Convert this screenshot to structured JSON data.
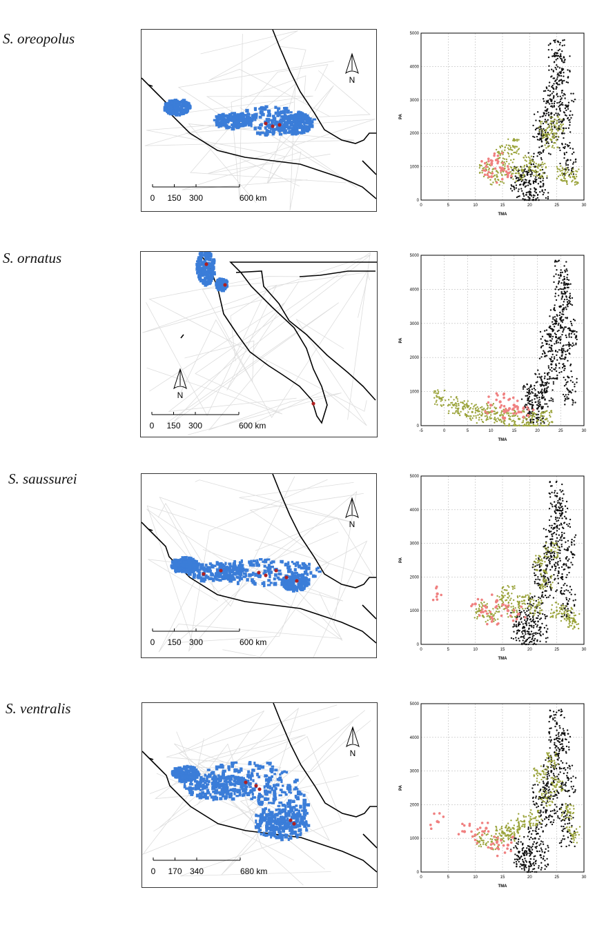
{
  "panels": [
    {
      "species": "S. oreopolus",
      "map": {
        "north_label": "N",
        "scalebar": {
          "ticks": [
            "0",
            "150",
            "300",
            "600 km"
          ]
        },
        "region": "central-mexico"
      },
      "chart_data": {
        "type": "scatter",
        "xlabel": "TMA",
        "ylabel": "PA",
        "xlim": [
          0,
          30
        ],
        "ylim": [
          0,
          5000
        ],
        "xticks": [
          "0",
          "5",
          "10",
          "15",
          "20",
          "25",
          "30"
        ],
        "yticks": [
          "0",
          "1000",
          "2000",
          "3000",
          "4000",
          "5000"
        ],
        "grid": true,
        "series": [
          {
            "color": "#111111",
            "points": [
              [
                20,
                250
              ],
              [
                22,
                400
              ],
              [
                24,
                3000
              ],
              [
                25,
                4400
              ],
              [
                26,
                2000
              ],
              [
                27,
                1200
              ],
              [
                25,
                3500
              ],
              [
                23,
                1800
              ],
              [
                18,
                600
              ],
              [
                21,
                1000
              ],
              [
                26,
                3900
              ],
              [
                24,
                2600
              ],
              [
                19,
                500
              ],
              [
                22,
                2200
              ],
              [
                27,
                2800
              ]
            ]
          },
          {
            "color": "#9aa33a",
            "points": [
              [
                12,
                900
              ],
              [
                14,
                700
              ],
              [
                16,
                1000
              ],
              [
                18,
                800
              ],
              [
                20,
                1100
              ],
              [
                22,
                900
              ],
              [
                24,
                1800
              ],
              [
                26,
                800
              ],
              [
                28,
                700
              ],
              [
                15,
                1400
              ],
              [
                17,
                1600
              ],
              [
                23,
                2100
              ],
              [
                25,
                2300
              ]
            ]
          },
          {
            "color": "#f08080",
            "points": [
              [
                12,
                1000
              ],
              [
                13,
                1100
              ],
              [
                14,
                1200
              ],
              [
                15,
                950
              ],
              [
                16,
                800
              ],
              [
                13,
                700
              ]
            ]
          }
        ]
      }
    },
    {
      "species": "S. ornatus",
      "map": {
        "north_label": "N",
        "scalebar": {
          "ticks": [
            "0",
            "150",
            "300",
            "600 km"
          ]
        },
        "region": "baja-california"
      },
      "chart_data": {
        "type": "scatter",
        "xlabel": "TMA",
        "ylabel": "PA",
        "xlim": [
          -5,
          30
        ],
        "ylim": [
          0,
          5000
        ],
        "xticks": [
          "-5",
          "0",
          "5",
          "10",
          "15",
          "20",
          "25",
          "30"
        ],
        "yticks": [
          "0",
          "1000",
          "2000",
          "3000",
          "4000",
          "5000"
        ],
        "grid": true,
        "series": [
          {
            "color": "#111111",
            "points": [
              [
                20,
                500
              ],
              [
                22,
                1000
              ],
              [
                24,
                3000
              ],
              [
                25,
                4400
              ],
              [
                26,
                2000
              ],
              [
                27,
                1000
              ],
              [
                25,
                3500
              ],
              [
                23,
                1800
              ],
              [
                18,
                800
              ],
              [
                21,
                1200
              ],
              [
                26,
                3900
              ],
              [
                24,
                2600
              ],
              [
                19,
                600
              ],
              [
                22,
                2400
              ],
              [
                27,
                2800
              ]
            ]
          },
          {
            "color": "#9aa33a",
            "points": [
              [
                -1,
                800
              ],
              [
                2,
                600
              ],
              [
                4,
                500
              ],
              [
                6,
                400
              ],
              [
                8,
                300
              ],
              [
                10,
                400
              ],
              [
                12,
                300
              ],
              [
                14,
                200
              ],
              [
                16,
                200
              ],
              [
                18,
                100
              ],
              [
                20,
                150
              ],
              [
                22,
                200
              ]
            ]
          },
          {
            "color": "#f08080",
            "points": [
              [
                10,
                600
              ],
              [
                12,
                700
              ],
              [
                14,
                500
              ],
              [
                16,
                400
              ],
              [
                18,
                300
              ],
              [
                15,
                600
              ],
              [
                13,
                400
              ]
            ]
          }
        ]
      }
    },
    {
      "species": "S. saussurei",
      "map": {
        "north_label": "N",
        "scalebar": {
          "ticks": [
            "0",
            "150",
            "300",
            "600 km"
          ]
        },
        "region": "central-mexico"
      },
      "chart_data": {
        "type": "scatter",
        "xlabel": "TMA",
        "ylabel": "PA",
        "xlim": [
          0,
          30
        ],
        "ylim": [
          0,
          5000
        ],
        "xticks": [
          "0",
          "5",
          "10",
          "15",
          "20",
          "25",
          "30"
        ],
        "yticks": [
          "0",
          "1000",
          "2000",
          "3000",
          "4000",
          "5000"
        ],
        "grid": true,
        "series": [
          {
            "color": "#111111",
            "points": [
              [
                20,
                300
              ],
              [
                22,
                500
              ],
              [
                24,
                3000
              ],
              [
                25,
                4400
              ],
              [
                26,
                2000
              ],
              [
                27,
                1200
              ],
              [
                25,
                3500
              ],
              [
                23,
                1800
              ],
              [
                18,
                600
              ],
              [
                21,
                1000
              ],
              [
                26,
                3900
              ],
              [
                24,
                2600
              ],
              [
                19,
                500
              ],
              [
                22,
                2200
              ],
              [
                27,
                2800
              ]
            ]
          },
          {
            "color": "#9aa33a",
            "points": [
              [
                11,
                1000
              ],
              [
                13,
                900
              ],
              [
                15,
                1200
              ],
              [
                17,
                1000
              ],
              [
                19,
                1300
              ],
              [
                21,
                1100
              ],
              [
                23,
                1900
              ],
              [
                25,
                1000
              ],
              [
                27,
                900
              ],
              [
                28,
                700
              ],
              [
                16,
                1500
              ],
              [
                22,
                2400
              ],
              [
                24,
                2800
              ]
            ]
          },
          {
            "color": "#f08080",
            "points": [
              [
                3,
                1500
              ],
              [
                10,
                1200
              ],
              [
                12,
                1100
              ],
              [
                14,
                1300
              ],
              [
                16,
                1000
              ],
              [
                18,
                900
              ],
              [
                13,
                800
              ]
            ]
          }
        ]
      }
    },
    {
      "species": "S. ventralis",
      "map": {
        "north_label": "N",
        "scalebar": {
          "ticks": [
            "0",
            "170",
            "340",
            "680 km"
          ]
        },
        "region": "central-mexico"
      },
      "chart_data": {
        "type": "scatter",
        "xlabel": "TMA",
        "ylabel": "PA",
        "xlim": [
          0,
          30
        ],
        "ylim": [
          0,
          5000
        ],
        "xticks": [
          "0",
          "5",
          "10",
          "15",
          "20",
          "25",
          "30"
        ],
        "yticks": [
          "0",
          "1000",
          "2000",
          "3000",
          "4000",
          "5000"
        ],
        "grid": true,
        "series": [
          {
            "color": "#111111",
            "points": [
              [
                20,
                300
              ],
              [
                22,
                500
              ],
              [
                24,
                3000
              ],
              [
                25,
                4400
              ],
              [
                26,
                2000
              ],
              [
                27,
                1200
              ],
              [
                25,
                3500
              ],
              [
                23,
                1800
              ],
              [
                18,
                600
              ],
              [
                21,
                1000
              ],
              [
                26,
                3900
              ],
              [
                24,
                2600
              ],
              [
                19,
                500
              ],
              [
                22,
                2200
              ],
              [
                27,
                2800
              ]
            ]
          },
          {
            "color": "#9aa33a",
            "points": [
              [
                11,
                1000
              ],
              [
                13,
                900
              ],
              [
                15,
                1200
              ],
              [
                17,
                1300
              ],
              [
                19,
                1500
              ],
              [
                21,
                1600
              ],
              [
                23,
                2200
              ],
              [
                25,
                2600
              ],
              [
                27,
                1800
              ],
              [
                28,
                1100
              ],
              [
                16,
                1100
              ],
              [
                22,
                2900
              ],
              [
                24,
                3300
              ]
            ]
          },
          {
            "color": "#f08080",
            "points": [
              [
                3,
                1500
              ],
              [
                8,
                1200
              ],
              [
                10,
                1100
              ],
              [
                12,
                1300
              ],
              [
                14,
                900
              ],
              [
                16,
                800
              ],
              [
                13,
                700
              ]
            ]
          }
        ]
      }
    }
  ]
}
